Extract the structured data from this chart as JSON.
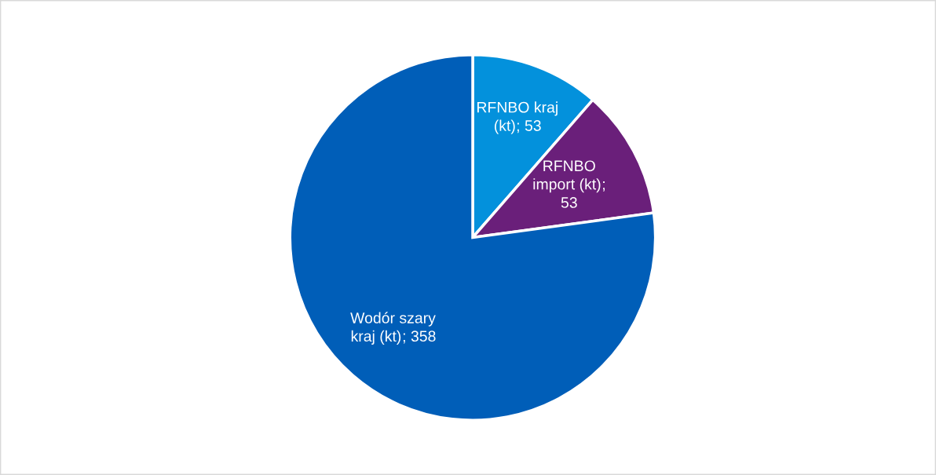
{
  "chart_data": {
    "type": "pie",
    "categories": [
      "RFNBO kraj (kt)",
      "RFNBO import (kt)",
      "Wodór szary kraj (kt)"
    ],
    "values": [
      53,
      53,
      358
    ],
    "colors": [
      "#0391dc",
      "#6a1f7a",
      "#005eb8"
    ],
    "value_labels": [
      "; 53",
      ";\n53",
      "; 358"
    ],
    "legend": false
  }
}
